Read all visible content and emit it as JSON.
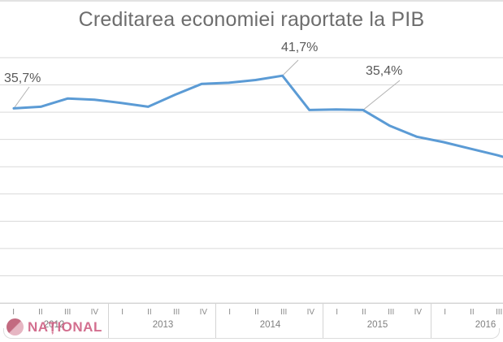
{
  "page": {
    "top_border_color": "#e2e2e2",
    "background": "#ffffff"
  },
  "watermark": {
    "text": "NAȚIONAL",
    "color": "#c94f76",
    "logo": "two-tone-circle-logo"
  },
  "chart_data": {
    "type": "line",
    "title": "Creditarea economiei raportate la PIB",
    "unit": "%",
    "x_groups": [
      {
        "year": "2012",
        "quarters": [
          "I",
          "II",
          "III",
          "IV"
        ]
      },
      {
        "year": "2013",
        "quarters": [
          "I",
          "II",
          "III",
          "IV"
        ]
      },
      {
        "year": "2014",
        "quarters": [
          "I",
          "II",
          "III",
          "IV"
        ]
      },
      {
        "year": "2015",
        "quarters": [
          "I",
          "II",
          "III",
          "IV"
        ]
      },
      {
        "year": "2016",
        "quarters": [
          "I",
          "II",
          "III"
        ]
      }
    ],
    "categories": [
      "2012 I",
      "2012 II",
      "2012 III",
      "2012 IV",
      "2013 I",
      "2013 II",
      "2013 III",
      "2013 IV",
      "2014 I",
      "2014 II",
      "2014 III",
      "2014 IV",
      "2015 I",
      "2015 II",
      "2015 III",
      "2015 IV",
      "2016 I",
      "2016 II",
      "2016 III"
    ],
    "values": [
      35.7,
      36.0,
      37.5,
      37.3,
      36.7,
      36.0,
      38.2,
      40.2,
      40.4,
      40.9,
      41.7,
      35.4,
      35.5,
      35.4,
      32.5,
      30.5,
      29.5,
      28.3,
      27.1
    ],
    "edge_value": 26.8,
    "clipped_right": true,
    "ylim": [
      0,
      45
    ],
    "gridline_step": 5,
    "grid": true,
    "y_axis_labels_visible": false,
    "legend": "none",
    "line_color": "#5B9BD5",
    "gridline_color": "#d9d9d9",
    "axis_border_color": "#d4d4d4",
    "leader_line_color": "#b3b3b3",
    "axis_text_color": "#8a8a8a",
    "label_color": "#595959",
    "title_color": "#6d6d6d",
    "annotations": [
      {
        "text": "35,7%",
        "index": 0,
        "value": 35.7
      },
      {
        "text": "41,7%",
        "index": 10,
        "value": 41.7
      },
      {
        "text": "35,4%",
        "index": 13,
        "value": 35.4
      }
    ]
  }
}
